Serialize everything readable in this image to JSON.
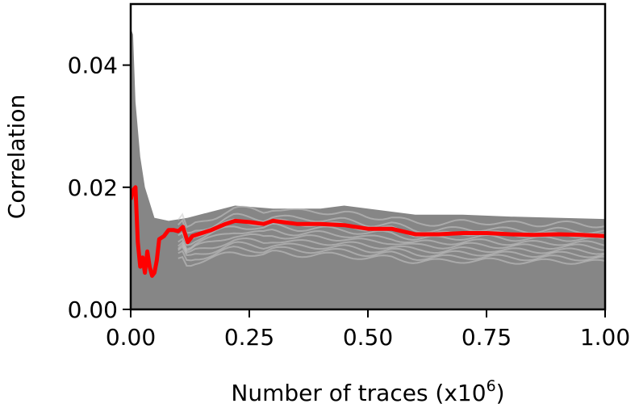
{
  "chart_data": {
    "type": "line",
    "xlabel": "Number of traces (x10",
    "xlabel_superscript": "6",
    "xlabel_suffix": ")",
    "ylabel": "Correlation",
    "xlim": [
      0.0,
      1.0
    ],
    "ylim": [
      0.0,
      0.05
    ],
    "x_ticks": [
      0.0,
      0.25,
      0.5,
      0.75,
      1.0
    ],
    "x_tick_labels": [
      "0.00",
      "0.25",
      "0.50",
      "0.75",
      "1.00"
    ],
    "y_ticks": [
      0.0,
      0.02,
      0.04
    ],
    "y_tick_labels": [
      "0.00",
      "0.02",
      "0.04"
    ],
    "grid": false,
    "colors": {
      "highlight": "#ff0000",
      "background_series": "#808080",
      "axes": "#000000"
    },
    "highlight_series": {
      "x": [
        0.0,
        0.005,
        0.01,
        0.015,
        0.02,
        0.025,
        0.03,
        0.035,
        0.04,
        0.045,
        0.05,
        0.055,
        0.06,
        0.07,
        0.08,
        0.09,
        0.1,
        0.11,
        0.12,
        0.13,
        0.15,
        0.17,
        0.2,
        0.22,
        0.25,
        0.28,
        0.3,
        0.33,
        0.35,
        0.4,
        0.45,
        0.5,
        0.55,
        0.6,
        0.65,
        0.7,
        0.75,
        0.8,
        0.85,
        0.9,
        0.95,
        1.0
      ],
      "y": [
        0.018,
        0.0195,
        0.02,
        0.011,
        0.007,
        0.0085,
        0.006,
        0.0095,
        0.007,
        0.0055,
        0.006,
        0.008,
        0.0115,
        0.012,
        0.013,
        0.013,
        0.0128,
        0.0135,
        0.011,
        0.012,
        0.0125,
        0.013,
        0.014,
        0.0145,
        0.0143,
        0.014,
        0.0145,
        0.0142,
        0.014,
        0.014,
        0.0138,
        0.0132,
        0.0132,
        0.0123,
        0.0123,
        0.0125,
        0.0125,
        0.0123,
        0.0122,
        0.0123,
        0.0122,
        0.012
      ]
    },
    "background_series_envelope": {
      "x": [
        0.0,
        0.005,
        0.01,
        0.02,
        0.03,
        0.05,
        0.08,
        0.12,
        0.17,
        0.22,
        0.3,
        0.4,
        0.45,
        0.5,
        0.6,
        0.7,
        0.8,
        0.9,
        1.0
      ],
      "upper": [
        0.046,
        0.045,
        0.034,
        0.025,
        0.02,
        0.015,
        0.0145,
        0.015,
        0.016,
        0.017,
        0.0165,
        0.0165,
        0.017,
        0.0165,
        0.0155,
        0.0155,
        0.0152,
        0.015,
        0.0148
      ],
      "lower": [
        0.0,
        0.0,
        0.0,
        0.0,
        0.0,
        0.0,
        0.0,
        0.0,
        0.0,
        0.0,
        0.0,
        0.0,
        0.0,
        0.0,
        0.0,
        0.0,
        0.0,
        0.0,
        0.0
      ]
    },
    "background_series_levels": [
      0.0143,
      0.0132,
      0.0125,
      0.0118,
      0.0111,
      0.0105,
      0.0098,
      0.0092,
      0.0086,
      0.008
    ]
  }
}
